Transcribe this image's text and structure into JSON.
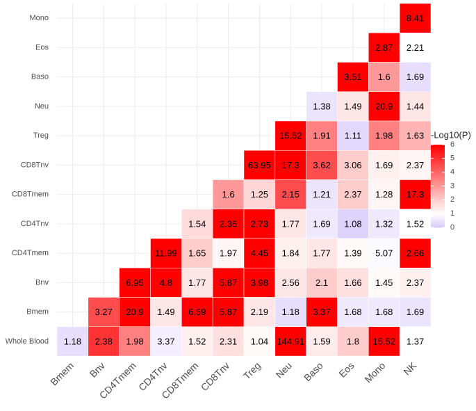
{
  "chart_data": {
    "type": "heatmap",
    "x_categories": [
      "Bmem",
      "Bnv",
      "CD4Tmem",
      "CD4Tnv",
      "CD8Tmem",
      "CD8Tnv",
      "Treg",
      "Neu",
      "Baso",
      "Eos",
      "Mono",
      "NK"
    ],
    "y_categories": [
      "Mono",
      "Eos",
      "Baso",
      "Neu",
      "Treg",
      "CD8Tnv",
      "CD8Tmem",
      "CD4Tnv",
      "CD4Tmem",
      "Bnv",
      "Bmem",
      "Whole Blood"
    ],
    "values": [
      [
        null,
        null,
        null,
        null,
        null,
        null,
        null,
        null,
        null,
        null,
        null,
        8.41
      ],
      [
        null,
        null,
        null,
        null,
        null,
        null,
        null,
        null,
        null,
        null,
        2.87,
        2.21
      ],
      [
        null,
        null,
        null,
        null,
        null,
        null,
        null,
        null,
        null,
        3.51,
        1.6,
        1.69
      ],
      [
        null,
        null,
        null,
        null,
        null,
        null,
        null,
        null,
        1.38,
        1.49,
        20.9,
        1.44
      ],
      [
        null,
        null,
        null,
        null,
        null,
        null,
        null,
        15.52,
        1.91,
        1.11,
        1.98,
        1.63
      ],
      [
        null,
        null,
        null,
        null,
        null,
        null,
        63.95,
        17.3,
        3.62,
        3.06,
        1.69,
        2.37
      ],
      [
        null,
        null,
        null,
        null,
        null,
        1.6,
        1.25,
        2.15,
        1.21,
        2.37,
        1.28,
        17.3
      ],
      [
        null,
        null,
        null,
        null,
        1.54,
        2.36,
        2.73,
        1.77,
        1.69,
        1.08,
        1.32,
        1.52
      ],
      [
        null,
        null,
        null,
        11.99,
        1.65,
        1.97,
        4.45,
        1.84,
        1.77,
        1.39,
        5.07,
        2.66
      ],
      [
        null,
        null,
        6.95,
        4.8,
        1.77,
        5.87,
        3.98,
        2.56,
        2.1,
        1.66,
        1.45,
        2.37
      ],
      [
        null,
        3.27,
        20.9,
        1.49,
        6.59,
        5.87,
        2.19,
        1.18,
        3.37,
        1.68,
        1.68,
        1.69
      ],
      [
        1.18,
        2.38,
        1.98,
        3.37,
        1.52,
        2.31,
        1.04,
        144.91,
        1.59,
        1.8,
        15.52,
        1.37
      ]
    ],
    "z": [
      [
        null,
        null,
        null,
        null,
        null,
        null,
        null,
        null,
        null,
        null,
        null,
        6
      ],
      [
        null,
        null,
        null,
        null,
        null,
        null,
        null,
        null,
        null,
        null,
        6,
        1
      ],
      [
        null,
        null,
        null,
        null,
        null,
        null,
        null,
        null,
        null,
        6,
        3,
        0.4
      ],
      [
        null,
        null,
        null,
        null,
        null,
        null,
        null,
        null,
        0.5,
        1.5,
        6,
        1.5
      ],
      [
        null,
        null,
        null,
        null,
        null,
        null,
        null,
        6,
        3.5,
        0.3,
        3.5,
        2.5
      ],
      [
        null,
        null,
        null,
        null,
        null,
        null,
        6,
        6,
        4.5,
        2,
        1.3,
        1.2
      ],
      [
        null,
        null,
        null,
        null,
        null,
        3,
        1.8,
        4.5,
        0.5,
        2,
        1.2,
        6
      ],
      [
        null,
        null,
        null,
        null,
        1.7,
        6,
        6,
        1.5,
        0.6,
        0.2,
        0.6,
        1
      ],
      [
        null,
        null,
        null,
        6,
        2,
        1.2,
        6,
        1.3,
        1.5,
        1.1,
        0.9,
        6
      ],
      [
        null,
        null,
        6,
        6,
        1.5,
        6,
        6,
        1.5,
        2,
        1.6,
        1.1,
        1.3
      ],
      [
        null,
        4.5,
        6,
        1.5,
        6,
        6,
        1.5,
        0.4,
        6,
        0.6,
        0.6,
        0.5
      ],
      [
        0.4,
        5,
        3.5,
        0.7,
        1.3,
        1.6,
        1.1,
        6,
        1.4,
        2,
        6,
        1
      ]
    ],
    "legend_title": "-Log10(P)",
    "zlim": [
      0,
      6
    ],
    "legend_ticks": [
      0,
      1,
      2,
      3,
      4,
      5,
      6
    ],
    "low_color": "#d6c8fa",
    "mid_color": "#ffffff",
    "high_color": "#ff0000",
    "midpoint": 1,
    "grid": true
  }
}
